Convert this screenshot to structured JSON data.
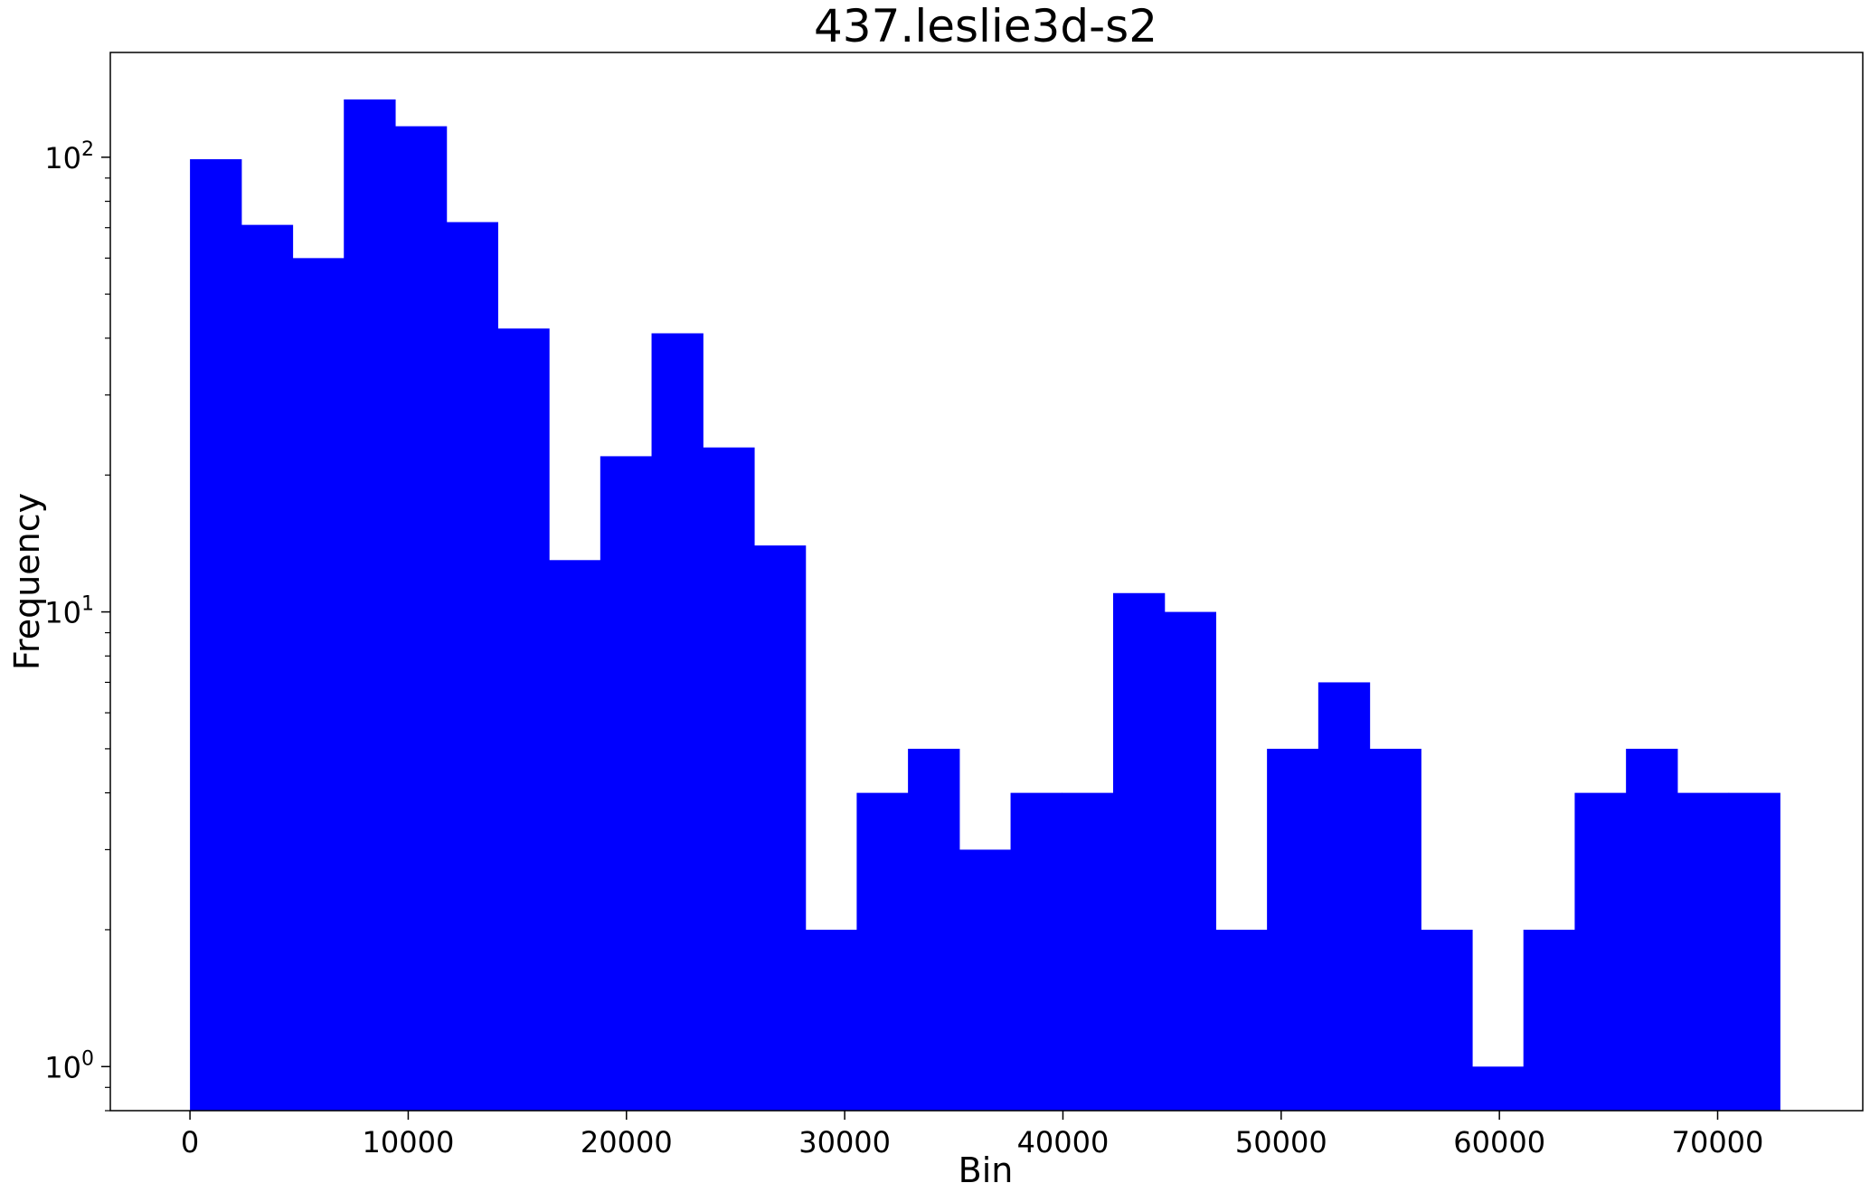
{
  "chart_data": {
    "type": "bar",
    "title": "437.leslie3d-s2",
    "xlabel": "Bin",
    "ylabel": "Frequency",
    "y_scale": "log",
    "xlim": [
      -3650,
      76650
    ],
    "ylim": [
      0.8,
      170
    ],
    "bar_color": "#0000ff",
    "grid": false,
    "legend": "none",
    "x_ticks": [
      {
        "value": 0,
        "label": "0"
      },
      {
        "value": 10000,
        "label": "10000"
      },
      {
        "value": 20000,
        "label": "20000"
      },
      {
        "value": 30000,
        "label": "30000"
      },
      {
        "value": 40000,
        "label": "40000"
      },
      {
        "value": 50000,
        "label": "50000"
      },
      {
        "value": 60000,
        "label": "60000"
      },
      {
        "value": 70000,
        "label": "70000"
      }
    ],
    "y_ticks": [
      {
        "value": 1,
        "base": "10",
        "exp": "0"
      },
      {
        "value": 10,
        "base": "10",
        "exp": "1"
      },
      {
        "value": 100,
        "base": "10",
        "exp": "2"
      }
    ],
    "bins": [
      {
        "x0": 0,
        "x1": 2350,
        "value": 99
      },
      {
        "x0": 2350,
        "x1": 4700,
        "value": 71
      },
      {
        "x0": 4700,
        "x1": 7050,
        "value": 60
      },
      {
        "x0": 7050,
        "x1": 9400,
        "value": 134
      },
      {
        "x0": 9400,
        "x1": 11750,
        "value": 117
      },
      {
        "x0": 11750,
        "x1": 14100,
        "value": 72
      },
      {
        "x0": 14100,
        "x1": 16450,
        "value": 42
      },
      {
        "x0": 16450,
        "x1": 18800,
        "value": 13
      },
      {
        "x0": 18800,
        "x1": 21150,
        "value": 22
      },
      {
        "x0": 21150,
        "x1": 23500,
        "value": 41
      },
      {
        "x0": 23500,
        "x1": 25850,
        "value": 23
      },
      {
        "x0": 25850,
        "x1": 28200,
        "value": 14
      },
      {
        "x0": 28200,
        "x1": 30550,
        "value": 2
      },
      {
        "x0": 30550,
        "x1": 32900,
        "value": 4
      },
      {
        "x0": 32900,
        "x1": 35250,
        "value": 5
      },
      {
        "x0": 35250,
        "x1": 37600,
        "value": 3
      },
      {
        "x0": 37600,
        "x1": 39950,
        "value": 4
      },
      {
        "x0": 39950,
        "x1": 42300,
        "value": 4
      },
      {
        "x0": 42300,
        "x1": 44650,
        "value": 11
      },
      {
        "x0": 44650,
        "x1": 47000,
        "value": 10
      },
      {
        "x0": 47000,
        "x1": 49350,
        "value": 2
      },
      {
        "x0": 49350,
        "x1": 51700,
        "value": 5
      },
      {
        "x0": 51700,
        "x1": 54050,
        "value": 7
      },
      {
        "x0": 54050,
        "x1": 56400,
        "value": 5
      },
      {
        "x0": 56400,
        "x1": 58750,
        "value": 2
      },
      {
        "x0": 58750,
        "x1": 61100,
        "value": 1
      },
      {
        "x0": 61100,
        "x1": 63450,
        "value": 2
      },
      {
        "x0": 63450,
        "x1": 65800,
        "value": 4
      },
      {
        "x0": 65800,
        "x1": 68150,
        "value": 5
      },
      {
        "x0": 68150,
        "x1": 70500,
        "value": 4
      },
      {
        "x0": 70500,
        "x1": 72850,
        "value": 4
      }
    ]
  }
}
